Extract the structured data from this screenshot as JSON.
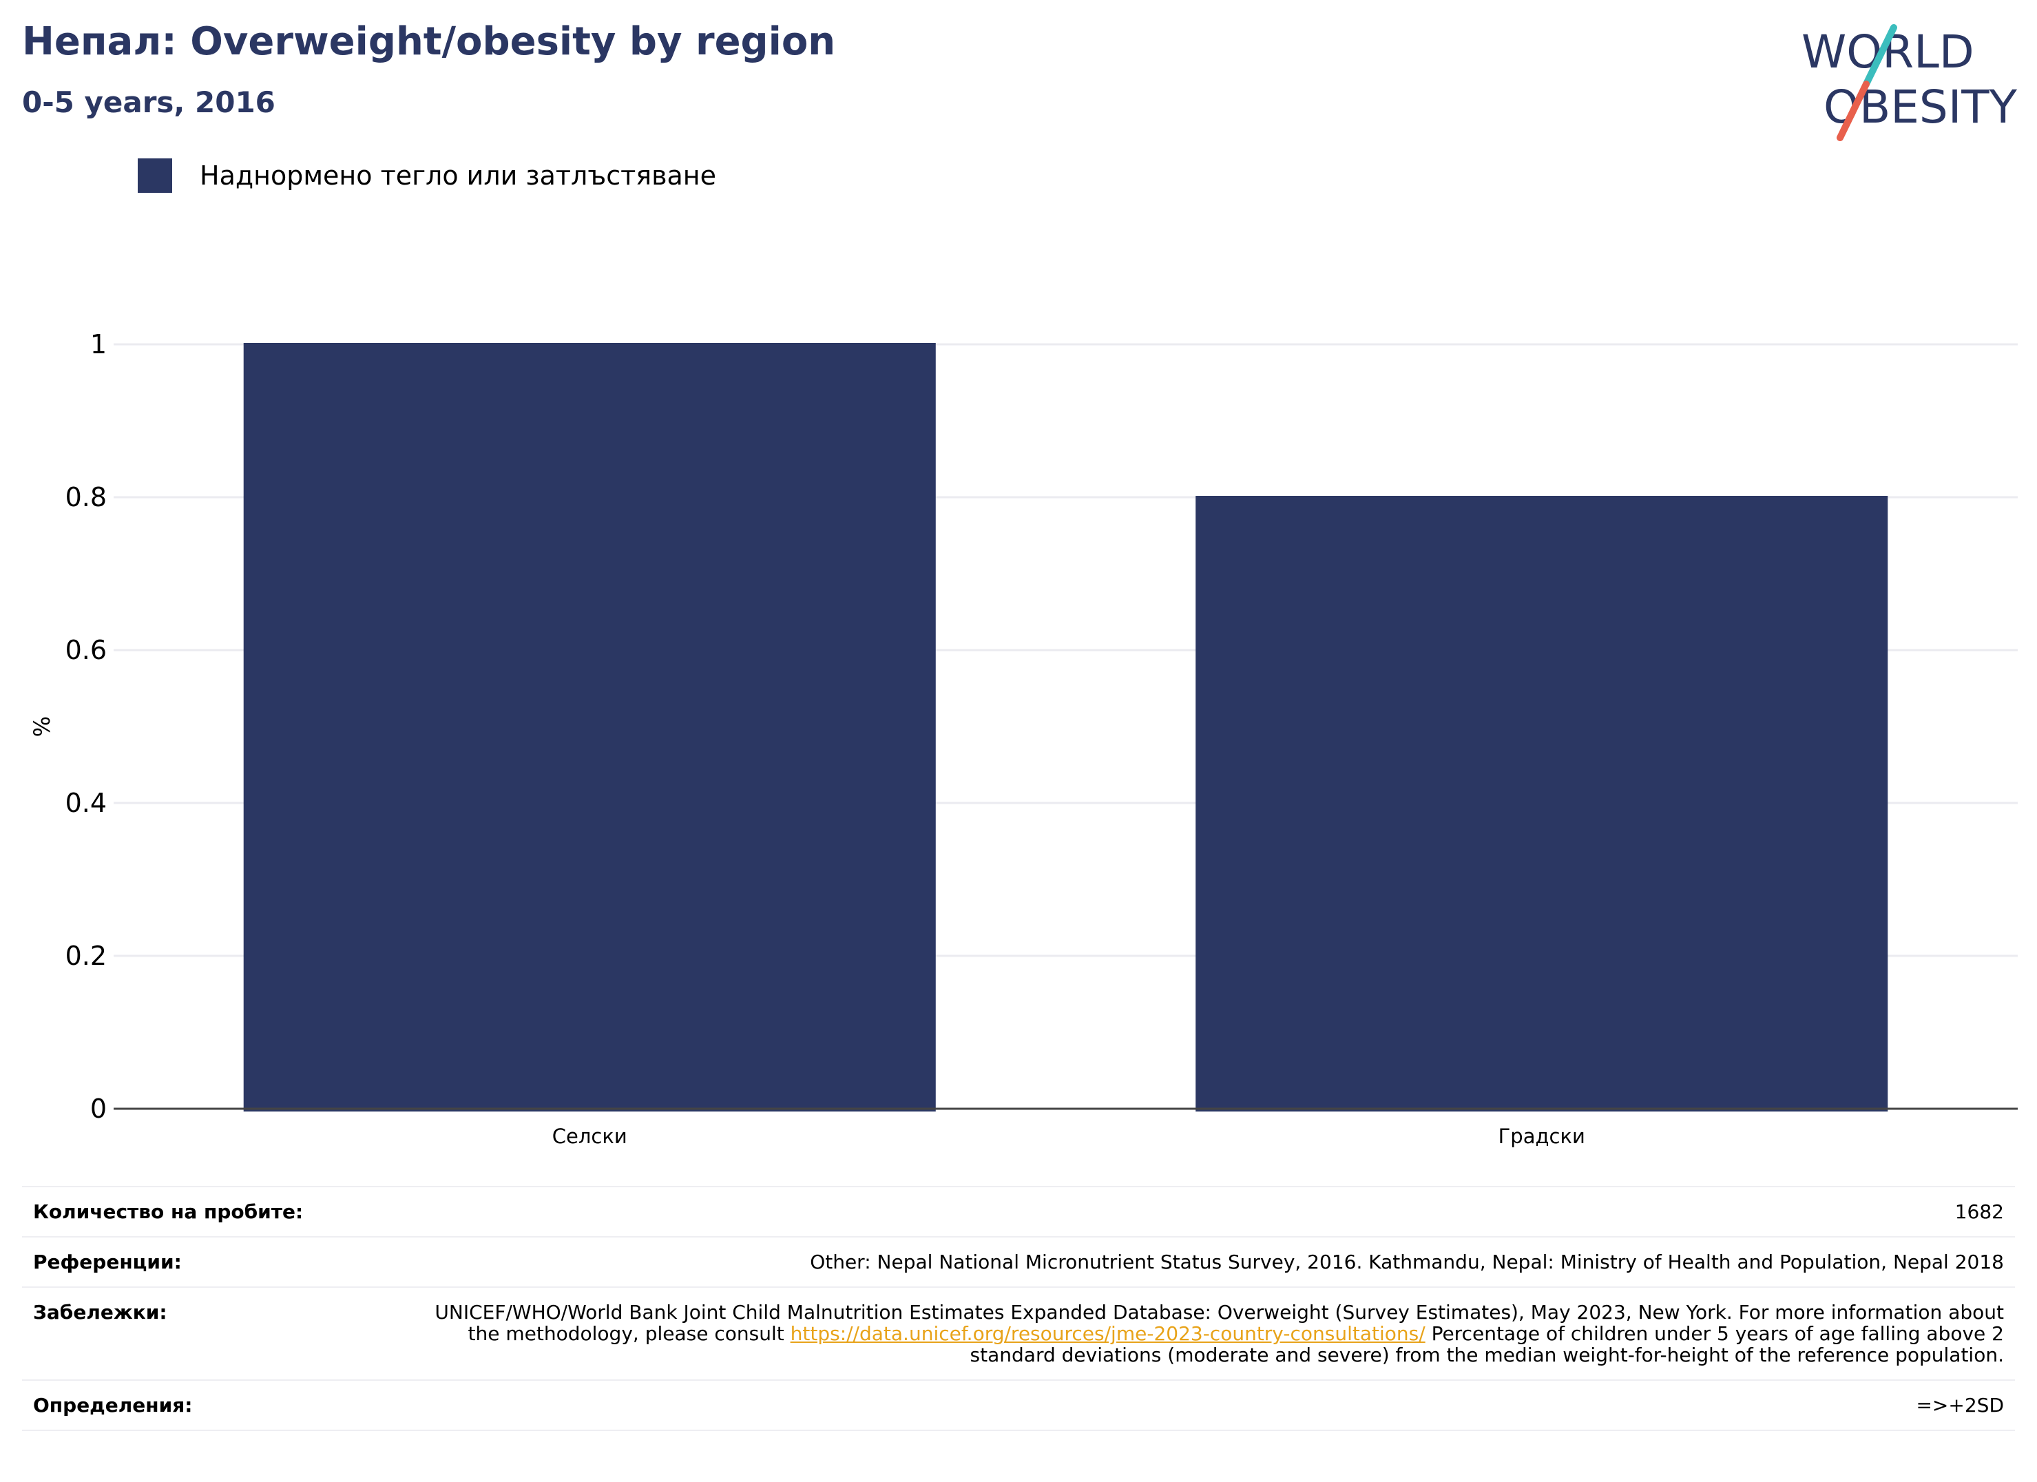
{
  "header": {
    "title": "Непал: Overweight/obesity by region",
    "subtitle": "0-5 years, 2016"
  },
  "logo": {
    "line1": "WORLD",
    "line2": "OBESITY",
    "colors": {
      "text": "#2b3763",
      "slash_top": "#3bbdbd",
      "slash_bottom": "#e8604c"
    }
  },
  "legend": {
    "label": "Наднормено тегло или затлъстяване",
    "color": "#2b3763"
  },
  "chart_data": {
    "type": "bar",
    "categories": [
      "Селски",
      "Градски"
    ],
    "series": [
      {
        "name": "Наднормено тегло или затлъстяване",
        "values": [
          1.0,
          0.8
        ],
        "color": "#2b3763"
      }
    ],
    "ylabel": "%",
    "ylim": [
      0,
      1
    ],
    "yticks": [
      0,
      0.2,
      0.4,
      0.6,
      0.8,
      1
    ],
    "ytick_labels": [
      "0",
      "0.2",
      "0.4",
      "0.6",
      "0.8",
      "1"
    ],
    "grid": true,
    "legend_position": "top-left"
  },
  "info": {
    "sample_label": "Количество на пробите:",
    "sample_value": "1682",
    "references_label": "Референции:",
    "references_value": "Other: Nepal National Micronutrient Status Survey, 2016. Kathmandu, Nepal: Ministry of Health and Population, Nepal 2018",
    "notes_label": "Забележки:",
    "notes_before": "UNICEF/WHO/World Bank Joint Child Malnutrition Estimates Expanded Database: Overweight (Survey Estimates), May 2023, New York. For more information about the methodology, please consult ",
    "notes_link": "https://data.unicef.org/resources/jme-2023-country-consultations/",
    "notes_after": " Percentage of children under 5 years of age falling above 2 standard deviations (moderate and severe) from the median weight-for-height of the reference population.",
    "definitions_label": "Определения:",
    "definitions_value": "=>+2SD"
  }
}
